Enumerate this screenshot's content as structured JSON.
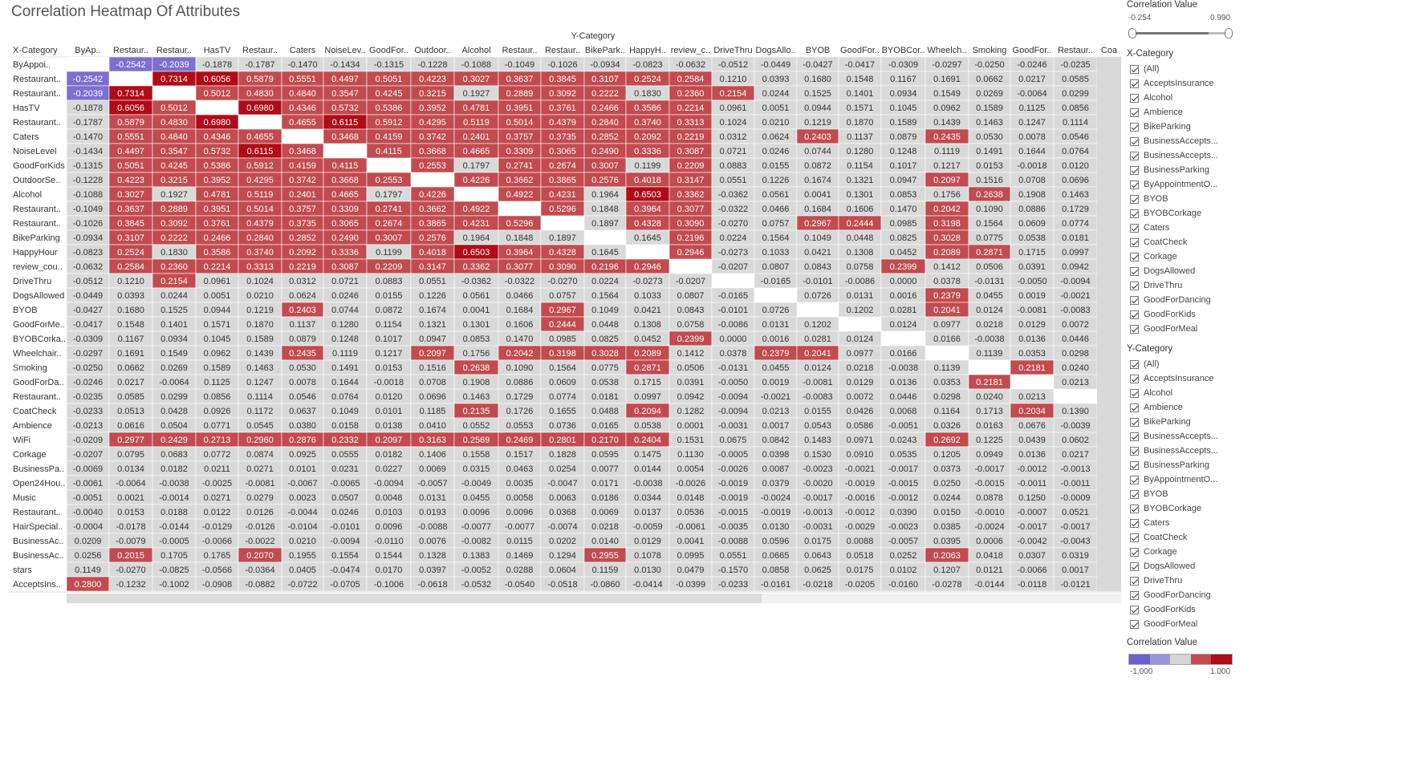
{
  "title": "Correlation Heatmap Of Attributes",
  "chart_data": {
    "type": "heatmap",
    "title": "Correlation Heatmap Of Attributes",
    "x_axis_header": "X-Category",
    "y_axis_header": "Y-Category",
    "columns": [
      "ByAp..",
      "Restaur..",
      "Restaur..",
      "HasTV",
      "Restaur..",
      "Caters",
      "NoiseLev..",
      "GoodFor..",
      "Outdoor..",
      "Alcohol",
      "Restaur..",
      "Restaur..",
      "BikePark..",
      "HappyH..",
      "review_c..",
      "DriveThru",
      "DogsAllo..",
      "BYOB",
      "GoodFor..",
      "BYOBCor..",
      "Wheelch..",
      "Smoking",
      "GoodFor..",
      "Restaur..",
      "Coa"
    ],
    "rows": [
      "ByAppoi..",
      "Restaurant..",
      "Restaurant..",
      "HasTV",
      "Restaurant..",
      "Caters",
      "NoiseLevel",
      "GoodForKids",
      "OutdoorSe..",
      "Alcohol",
      "Restaurant..",
      "Restaurant..",
      "BikeParking",
      "HappyHour",
      "review_cou..",
      "DriveThru",
      "DogsAllowed",
      "BYOB",
      "GoodForMe..",
      "BYOBCorka..",
      "Wheelchair..",
      "Smoking",
      "GoodForDa..",
      "Restaurant..",
      "CoatCheck",
      "Ambience",
      "WiFi",
      "Corkage",
      "BusinessPa..",
      "Open24Hou..",
      "Music",
      "Restaurant..",
      "HairSpecial..",
      "BusinessAc..",
      "BusinessAc..",
      "stars",
      "AcceptsIns.."
    ],
    "values": [
      [
        null,
        "-0.2542",
        "-0.2039",
        "-0.1878",
        "-0.1787",
        "-0.1470",
        "-0.1434",
        "-0.1315",
        "-0.1228",
        "-0.1088",
        "-0.1049",
        "-0.1026",
        "-0.0934",
        "-0.0823",
        "-0.0632",
        "-0.0512",
        "-0.0449",
        "-0.0427",
        "-0.0417",
        "-0.0309",
        "-0.0297",
        "-0.0250",
        "-0.0246",
        "-0.0235",
        ""
      ],
      [
        "-0.2542",
        null,
        "0.7314",
        "0.6056",
        "0.5879",
        "0.5551",
        "0.4497",
        "0.5051",
        "0.4223",
        "0.3027",
        "0.3637",
        "0.3845",
        "0.3107",
        "0.2524",
        "0.2584",
        "0.1210",
        "0.0393",
        "0.1680",
        "0.1548",
        "0.1167",
        "0.1691",
        "0.0662",
        "0.0217",
        "0.0585",
        ""
      ],
      [
        "-0.2039",
        "0.7314",
        null,
        "0.5012",
        "0.4830",
        "0.4840",
        "0.3547",
        "0.4245",
        "0.3215",
        "0.1927",
        "0.2889",
        "0.3092",
        "0.2222",
        "0.1830",
        "0.2360",
        "0.2154",
        "0.0244",
        "0.1525",
        "0.1401",
        "0.0934",
        "0.1549",
        "0.0269",
        "-0.0064",
        "0.0299",
        ""
      ],
      [
        "-0.1878",
        "0.6056",
        "0.5012",
        null,
        "0.6980",
        "0.4346",
        "0.5732",
        "0.5386",
        "0.3952",
        "0.4781",
        "0.3951",
        "0.3761",
        "0.2466",
        "0.3586",
        "0.2214",
        "0.0961",
        "0.0051",
        "0.0944",
        "0.1571",
        "0.1045",
        "0.0962",
        "0.1589",
        "0.1125",
        "0.0856",
        ""
      ],
      [
        "-0.1787",
        "0.5879",
        "0.4830",
        "0.6980",
        null,
        "0.4655",
        "0.6115",
        "0.5912",
        "0.4295",
        "0.5119",
        "0.5014",
        "0.4379",
        "0.2840",
        "0.3740",
        "0.3313",
        "0.1024",
        "0.0210",
        "0.1219",
        "0.1870",
        "0.1589",
        "0.1439",
        "0.1463",
        "0.1247",
        "0.1114",
        ""
      ],
      [
        "-0.1470",
        "0.5551",
        "0.4840",
        "0.4346",
        "0.4655",
        null,
        "0.3468",
        "0.4159",
        "0.3742",
        "0.2401",
        "0.3757",
        "0.3735",
        "0.2852",
        "0.2092",
        "0.2219",
        "0.0312",
        "0.0624",
        "0.2403",
        "0.1137",
        "0.0879",
        "0.2435",
        "0.0530",
        "0.0078",
        "0.0546",
        ""
      ],
      [
        "-0.1434",
        "0.4497",
        "0.3547",
        "0.5732",
        "0.6115",
        "0.3468",
        null,
        "0.4115",
        "0.3668",
        "0.4665",
        "0.3309",
        "0.3065",
        "0.2490",
        "0.3336",
        "0.3087",
        "0.0721",
        "0.0246",
        "0.0744",
        "0.1280",
        "0.1248",
        "0.1119",
        "0.1491",
        "0.1644",
        "0.0764",
        ""
      ],
      [
        "-0.1315",
        "0.5051",
        "0.4245",
        "0.5386",
        "0.5912",
        "0.4159",
        "0.4115",
        null,
        "0.2553",
        "0.1797",
        "0.2741",
        "0.2674",
        "0.3007",
        "0.1199",
        "0.2209",
        "0.0883",
        "0.0155",
        "0.0872",
        "0.1154",
        "0.1017",
        "0.1217",
        "0.0153",
        "-0.0018",
        "0.0120",
        ""
      ],
      [
        "-0.1228",
        "0.4223",
        "0.3215",
        "0.3952",
        "0.4295",
        "0.3742",
        "0.3668",
        "0.2553",
        null,
        "0.4226",
        "0.3662",
        "0.3865",
        "0.2576",
        "0.4018",
        "0.3147",
        "0.0551",
        "0.1226",
        "0.1674",
        "0.1321",
        "0.0947",
        "0.2097",
        "0.1516",
        "0.0708",
        "0.0696",
        ""
      ],
      [
        "-0.1088",
        "0.3027",
        "0.1927",
        "0.4781",
        "0.5119",
        "0.2401",
        "0.4665",
        "0.1797",
        "0.4226",
        null,
        "0.4922",
        "0.4231",
        "0.1964",
        "0.6503",
        "0.3362",
        "-0.0362",
        "0.0561",
        "0.0041",
        "0.1301",
        "0.0853",
        "0.1756",
        "0.2638",
        "0.1908",
        "0.1463",
        ""
      ],
      [
        "-0.1049",
        "0.3637",
        "0.2889",
        "0.3951",
        "0.5014",
        "0.3757",
        "0.3309",
        "0.2741",
        "0.3662",
        "0.4922",
        null,
        "0.5296",
        "0.1848",
        "0.3964",
        "0.3077",
        "-0.0322",
        "0.0466",
        "0.1684",
        "0.1606",
        "0.1470",
        "0.2042",
        "0.1090",
        "0.0886",
        "0.1729",
        ""
      ],
      [
        "-0.1026",
        "0.3845",
        "0.3092",
        "0.3761",
        "0.4379",
        "0.3735",
        "0.3065",
        "0.2674",
        "0.3865",
        "0.4231",
        "0.5296",
        null,
        "0.1897",
        "0.4328",
        "0.3090",
        "-0.0270",
        "0.0757",
        "0.2967",
        "0.2444",
        "0.0985",
        "0.3198",
        "0.1564",
        "0.0609",
        "0.0774",
        ""
      ],
      [
        "-0.0934",
        "0.3107",
        "0.2222",
        "0.2466",
        "0.2840",
        "0.2852",
        "0.2490",
        "0.3007",
        "0.2576",
        "0.1964",
        "0.1848",
        "0.1897",
        null,
        "0.1645",
        "0.2196",
        "0.0224",
        "0.1564",
        "0.1049",
        "0.0448",
        "0.0825",
        "0.3028",
        "0.0775",
        "0.0538",
        "0.0181",
        ""
      ],
      [
        "-0.0823",
        "0.2524",
        "0.1830",
        "0.3586",
        "0.3740",
        "0.2092",
        "0.3336",
        "0.1199",
        "0.4018",
        "0.6503",
        "0.3964",
        "0.4328",
        "0.1645",
        null,
        "0.2946",
        "-0.0273",
        "0.1033",
        "0.0421",
        "0.1308",
        "0.0452",
        "0.2089",
        "0.2871",
        "0.1715",
        "0.0997",
        ""
      ],
      [
        "-0.0632",
        "0.2584",
        "0.2360",
        "0.2214",
        "0.3313",
        "0.2219",
        "0.3087",
        "0.2209",
        "0.3147",
        "0.3362",
        "0.3077",
        "0.3090",
        "0.2196",
        "0.2946",
        null,
        "-0.0207",
        "0.0807",
        "0.0843",
        "0.0758",
        "0.2399",
        "0.1412",
        "0.0506",
        "0.0391",
        "0.0942",
        ""
      ],
      [
        "-0.0512",
        "0.1210",
        "0.2154",
        "0.0961",
        "0.1024",
        "0.0312",
        "0.0721",
        "0.0883",
        "0.0551",
        "-0.0362",
        "-0.0322",
        "-0.0270",
        "0.0224",
        "-0.0273",
        "-0.0207",
        null,
        "-0.0165",
        "-0.0101",
        "-0.0086",
        "0.0000",
        "0.0378",
        "-0.0131",
        "-0.0050",
        "-0.0094",
        ""
      ],
      [
        "-0.0449",
        "0.0393",
        "0.0244",
        "0.0051",
        "0.0210",
        "0.0624",
        "0.0246",
        "0.0155",
        "0.1226",
        "0.0561",
        "0.0466",
        "0.0757",
        "0.1564",
        "0.1033",
        "0.0807",
        "-0.0165",
        null,
        "0.0726",
        "0.0131",
        "0.0016",
        "0.2379",
        "0.0455",
        "0.0019",
        "-0.0021",
        ""
      ],
      [
        "-0.0427",
        "0.1680",
        "0.1525",
        "0.0944",
        "0.1219",
        "0.2403",
        "0.0744",
        "0.0872",
        "0.1674",
        "0.0041",
        "0.1684",
        "0.2967",
        "0.1049",
        "0.0421",
        "0.0843",
        "-0.0101",
        "0.0726",
        null,
        "0.1202",
        "0.0281",
        "0.2041",
        "0.0124",
        "-0.0081",
        "-0.0083",
        ""
      ],
      [
        "-0.0417",
        "0.1548",
        "0.1401",
        "0.1571",
        "0.1870",
        "0.1137",
        "0.1280",
        "0.1154",
        "0.1321",
        "0.1301",
        "0.1606",
        "0.2444",
        "0.0448",
        "0.1308",
        "0.0758",
        "-0.0086",
        "0.0131",
        "0.1202",
        null,
        "0.0124",
        "0.0977",
        "0.0218",
        "0.0129",
        "0.0072",
        ""
      ],
      [
        "-0.0309",
        "0.1167",
        "0.0934",
        "0.1045",
        "0.1589",
        "0.0879",
        "0.1248",
        "0.1017",
        "0.0947",
        "0.0853",
        "0.1470",
        "0.0985",
        "0.0825",
        "0.0452",
        "0.2399",
        "0.0000",
        "0.0016",
        "0.0281",
        "0.0124",
        null,
        "0.0166",
        "-0.0038",
        "0.0136",
        "0.0446",
        ""
      ],
      [
        "-0.0297",
        "0.1691",
        "0.1549",
        "0.0962",
        "0.1439",
        "0.2435",
        "0.1119",
        "0.1217",
        "0.2097",
        "0.1756",
        "0.2042",
        "0.3198",
        "0.3028",
        "0.2089",
        "0.1412",
        "0.0378",
        "0.2379",
        "0.2041",
        "0.0977",
        "0.0166",
        null,
        "0.1139",
        "0.0353",
        "0.0298",
        ""
      ],
      [
        "-0.0250",
        "0.0662",
        "0.0269",
        "0.1589",
        "0.1463",
        "0.0530",
        "0.1491",
        "0.0153",
        "0.1516",
        "0.2638",
        "0.1090",
        "0.1564",
        "0.0775",
        "0.2871",
        "0.0506",
        "-0.0131",
        "0.0455",
        "0.0124",
        "0.0218",
        "-0.0038",
        "0.1139",
        null,
        "0.2181",
        "0.0240",
        ""
      ],
      [
        "-0.0246",
        "0.0217",
        "-0.0064",
        "0.1125",
        "0.1247",
        "0.0078",
        "0.1644",
        "-0.0018",
        "0.0708",
        "0.1908",
        "0.0886",
        "0.0609",
        "0.0538",
        "0.1715",
        "0.0391",
        "-0.0050",
        "0.0019",
        "-0.0081",
        "0.0129",
        "0.0136",
        "0.0353",
        "0.2181",
        null,
        "0.0213",
        ""
      ],
      [
        "-0.0235",
        "0.0585",
        "0.0299",
        "0.0856",
        "0.1114",
        "0.0546",
        "0.0764",
        "0.0120",
        "0.0696",
        "0.1463",
        "0.1729",
        "0.0774",
        "0.0181",
        "0.0997",
        "0.0942",
        "-0.0094",
        "-0.0021",
        "-0.0083",
        "0.0072",
        "0.0446",
        "0.0298",
        "0.0240",
        "0.0213",
        null,
        ""
      ],
      [
        "-0.0233",
        "0.0513",
        "0.0428",
        "0.0926",
        "0.1172",
        "0.0637",
        "0.1049",
        "0.0101",
        "0.1185",
        "0.2135",
        "0.1726",
        "0.1655",
        "0.0488",
        "0.2094",
        "0.1282",
        "-0.0094",
        "0.0213",
        "0.0155",
        "0.0426",
        "0.0068",
        "0.1164",
        "0.1713",
        "0.2034",
        "0.1390",
        ""
      ],
      [
        "-0.0213",
        "0.0616",
        "0.0504",
        "0.0771",
        "0.0545",
        "0.0380",
        "0.0158",
        "0.0138",
        "0.0410",
        "0.0552",
        "0.0553",
        "0.0736",
        "0.0165",
        "0.0538",
        "0.0001",
        "-0.0031",
        "0.0017",
        "0.0543",
        "0.0586",
        "-0.0051",
        "0.0326",
        "0.0163",
        "0.0676",
        "-0.0039",
        ""
      ],
      [
        "-0.0209",
        "0.2977",
        "0.2429",
        "0.2713",
        "0.2960",
        "0.2876",
        "0.2332",
        "0.2097",
        "0.3163",
        "0.2569",
        "0.2469",
        "0.2801",
        "0.2170",
        "0.2404",
        "0.1531",
        "0.0675",
        "0.0842",
        "0.1483",
        "0.0971",
        "0.0243",
        "0.2692",
        "0.1225",
        "0.0439",
        "0.0602",
        ""
      ],
      [
        "-0.0207",
        "0.0795",
        "0.0683",
        "0.0772",
        "0.0874",
        "0.0925",
        "0.0555",
        "0.0182",
        "0.1406",
        "0.1558",
        "0.1517",
        "0.1828",
        "0.0595",
        "0.1475",
        "0.1130",
        "-0.0005",
        "0.0398",
        "0.1530",
        "0.0910",
        "0.0535",
        "0.1205",
        "0.0949",
        "0.0136",
        "0.0217",
        ""
      ],
      [
        "-0.0069",
        "0.0134",
        "0.0182",
        "0.0211",
        "0.0271",
        "0.0101",
        "0.0231",
        "0.0227",
        "0.0069",
        "0.0315",
        "0.0463",
        "0.0254",
        "0.0077",
        "0.0144",
        "0.0054",
        "-0.0026",
        "0.0087",
        "-0.0023",
        "-0.0021",
        "-0.0017",
        "0.0373",
        "-0.0017",
        "-0.0012",
        "-0.0013",
        ""
      ],
      [
        "-0.0061",
        "-0.0064",
        "-0.0038",
        "-0.0025",
        "-0.0081",
        "-0.0067",
        "-0.0065",
        "-0.0094",
        "-0.0057",
        "-0.0049",
        "0.0035",
        "-0.0047",
        "0.0171",
        "-0.0038",
        "-0.0026",
        "-0.0019",
        "0.0379",
        "-0.0020",
        "-0.0019",
        "-0.0015",
        "0.0250",
        "-0.0015",
        "-0.0011",
        "-0.0011",
        ""
      ],
      [
        "-0.0051",
        "0.0021",
        "-0.0014",
        "0.0271",
        "0.0279",
        "0.0023",
        "0.0507",
        "0.0048",
        "0.0131",
        "0.0455",
        "0.0058",
        "0.0063",
        "0.0186",
        "0.0344",
        "0.0148",
        "-0.0019",
        "-0.0024",
        "-0.0017",
        "-0.0016",
        "-0.0012",
        "0.0244",
        "0.0878",
        "0.1250",
        "-0.0009",
        ""
      ],
      [
        "-0.0040",
        "0.0153",
        "0.0188",
        "0.0122",
        "0.0126",
        "-0.0044",
        "0.0246",
        "0.0103",
        "0.0193",
        "0.0096",
        "0.0096",
        "0.0368",
        "0.0069",
        "0.0137",
        "0.0536",
        "-0.0015",
        "-0.0019",
        "-0.0013",
        "-0.0012",
        "0.0390",
        "0.0150",
        "-0.0010",
        "-0.0007",
        "0.0521",
        ""
      ],
      [
        "-0.0004",
        "-0.0178",
        "-0.0144",
        "-0.0129",
        "-0.0126",
        "-0.0104",
        "-0.0101",
        "0.0096",
        "-0.0088",
        "-0.0077",
        "-0.0077",
        "-0.0074",
        "0.0218",
        "-0.0059",
        "-0.0061",
        "-0.0035",
        "0.0130",
        "-0.0031",
        "-0.0029",
        "-0.0023",
        "0.0385",
        "-0.0024",
        "-0.0017",
        "-0.0017",
        ""
      ],
      [
        "0.0209",
        "-0.0079",
        "-0.0005",
        "-0.0066",
        "-0.0022",
        "0.0210",
        "-0.0094",
        "-0.0110",
        "0.0076",
        "-0.0082",
        "0.0115",
        "0.0202",
        "0.0140",
        "0.0129",
        "0.0041",
        "-0.0088",
        "0.0596",
        "0.0175",
        "0.0088",
        "-0.0057",
        "0.0395",
        "0.0006",
        "-0.0042",
        "-0.0043",
        ""
      ],
      [
        "0.0256",
        "0.2015",
        "0.1705",
        "0.1765",
        "0.2070",
        "0.1955",
        "0.1554",
        "0.1544",
        "0.1328",
        "0.1383",
        "0.1469",
        "0.1294",
        "0.2955",
        "0.1078",
        "0.0995",
        "0.0551",
        "0.0665",
        "0.0643",
        "0.0518",
        "0.0252",
        "0.2063",
        "0.0418",
        "0.0307",
        "0.0319",
        ""
      ],
      [
        "0.1149",
        "-0.0270",
        "-0.0825",
        "-0.0566",
        "-0.0364",
        "0.0405",
        "-0.0474",
        "0.0170",
        "0.0397",
        "-0.0052",
        "0.0288",
        "0.0604",
        "0.1159",
        "0.0130",
        "0.0479",
        "-0.1570",
        "0.0858",
        "0.0625",
        "0.0175",
        "0.0102",
        "0.1207",
        "0.0121",
        "-0.0066",
        "0.0017",
        ""
      ],
      [
        "0.2800",
        "-0.1232",
        "-0.1002",
        "-0.0908",
        "-0.0882",
        "-0.0722",
        "-0.0705",
        "-0.1006",
        "-0.0618",
        "-0.0532",
        "-0.0540",
        "-0.0518",
        "-0.0860",
        "-0.0414",
        "-0.0399",
        "-0.0233",
        "-0.0161",
        "-0.0218",
        "-0.0205",
        "-0.0160",
        "-0.0278",
        "-0.0144",
        "-0.0118",
        "-0.0121",
        ""
      ]
    ],
    "color_scale": {
      "min": -1.0,
      "max": 1.0,
      "negative": "#7b6fd0",
      "neutral": "#d9d9d9",
      "positive": "#c24b4f",
      "strong_positive": "#b00b17"
    }
  },
  "sidebar": {
    "corr_title": "Correlation Value",
    "range_min": "-0.254",
    "range_max": "0.990",
    "x_title": "X-Category",
    "x_items": [
      "(All)",
      "AcceptsInsurance",
      "Alcohol",
      "Ambience",
      "BikeParking",
      "BusinessAccepts...",
      "BusinessAccepts...",
      "BusinessParking",
      "ByAppointmentO...",
      "BYOB",
      "BYOBCorkage",
      "Caters",
      "CoatCheck",
      "Corkage",
      "DogsAllowed",
      "DriveThru",
      "GoodForDancing",
      "GoodForKids",
      "GoodForMeal"
    ],
    "y_title": "Y-Category",
    "y_items": [
      "(All)",
      "AcceptsInsurance",
      "Alcohol",
      "Ambience",
      "BikeParking",
      "BusinessAccepts...",
      "BusinessAccepts...",
      "BusinessParking",
      "ByAppointmentO...",
      "BYOB",
      "BYOBCorkage",
      "Caters",
      "CoatCheck",
      "Corkage",
      "DogsAllowed",
      "DriveThru",
      "GoodForDancing",
      "GoodForKids",
      "GoodForMeal"
    ],
    "legend_title": "Correlation Value",
    "legend_min": "-1.000",
    "legend_max": "1.000",
    "legend_colors": [
      "#6a61c9",
      "#9b95dc",
      "#d4d4d4",
      "#c24b4f",
      "#b00b17"
    ]
  }
}
